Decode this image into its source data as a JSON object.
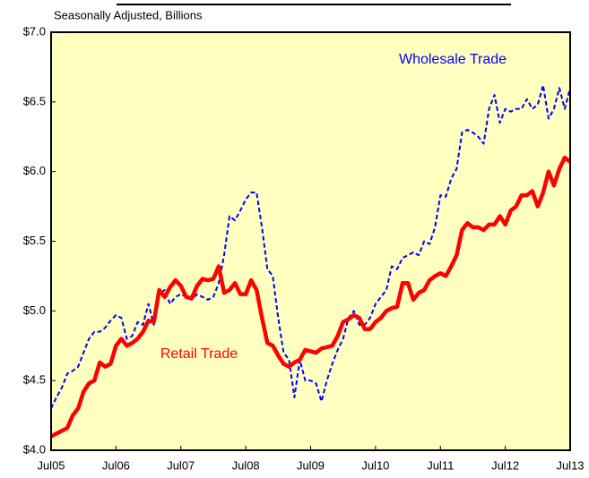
{
  "chart_data": {
    "type": "line",
    "subtitle": "Seasonally Adjusted, Billions",
    "categories": [
      "Jul05",
      null,
      null,
      null,
      null,
      null,
      null,
      null,
      null,
      null,
      null,
      null,
      "Jul06",
      null,
      null,
      null,
      null,
      null,
      null,
      null,
      null,
      null,
      null,
      null,
      "Jul07",
      null,
      null,
      null,
      null,
      null,
      null,
      null,
      null,
      null,
      null,
      null,
      "Jul08",
      null,
      null,
      null,
      null,
      null,
      null,
      null,
      null,
      null,
      null,
      null,
      "Jul09",
      null,
      null,
      null,
      null,
      null,
      null,
      null,
      null,
      null,
      null,
      null,
      "Jul10",
      null,
      null,
      null,
      null,
      null,
      null,
      null,
      null,
      null,
      null,
      null,
      "Jul11",
      null,
      null,
      null,
      null,
      null,
      null,
      null,
      null,
      null,
      null,
      null,
      "Jul12",
      null,
      null,
      null,
      null,
      null,
      null,
      null,
      null,
      null,
      null,
      null,
      "Jul13"
    ],
    "series": [
      {
        "name": "Wholesale Trade",
        "color": "#0000ff",
        "line_style": "dashed",
        "line_width": 2,
        "values": [
          4.3,
          4.38,
          4.45,
          4.55,
          4.57,
          4.6,
          4.7,
          4.8,
          4.85,
          4.85,
          4.88,
          4.93,
          4.97,
          4.95,
          4.8,
          4.82,
          4.92,
          4.9,
          5.05,
          4.9,
          5.12,
          5.15,
          5.05,
          5.1,
          5.12,
          5.1,
          5.08,
          5.12,
          5.1,
          5.08,
          5.1,
          5.2,
          5.4,
          5.68,
          5.65,
          5.72,
          5.8,
          5.85,
          5.85,
          5.6,
          5.3,
          5.25,
          4.95,
          4.7,
          4.65,
          4.38,
          4.65,
          4.5,
          4.5,
          4.48,
          4.35,
          4.5,
          4.62,
          4.72,
          4.8,
          4.95,
          5.0,
          4.9,
          4.9,
          4.95,
          5.05,
          5.1,
          5.15,
          5.32,
          5.3,
          5.38,
          5.4,
          5.42,
          5.4,
          5.5,
          5.48,
          5.6,
          5.83,
          5.82,
          5.95,
          6.02,
          6.28,
          6.3,
          6.28,
          6.25,
          6.2,
          6.45,
          6.55,
          6.35,
          6.45,
          6.43,
          6.45,
          6.45,
          6.52,
          6.45,
          6.48,
          6.62,
          6.38,
          6.45,
          6.6,
          6.45,
          6.6
        ]
      },
      {
        "name": "Retail Trade",
        "color": "#ff0000",
        "line_style": "solid",
        "line_width": 4.5,
        "values": [
          4.1,
          4.12,
          4.14,
          4.16,
          4.25,
          4.3,
          4.42,
          4.48,
          4.5,
          4.63,
          4.6,
          4.62,
          4.75,
          4.8,
          4.75,
          4.77,
          4.8,
          4.85,
          4.93,
          4.92,
          5.15,
          5.1,
          5.17,
          5.22,
          5.18,
          5.1,
          5.09,
          5.18,
          5.23,
          5.22,
          5.23,
          5.32,
          5.13,
          5.15,
          5.2,
          5.12,
          5.12,
          5.22,
          5.15,
          4.95,
          4.77,
          4.75,
          4.68,
          4.62,
          4.6,
          4.63,
          4.65,
          4.72,
          4.71,
          4.7,
          4.73,
          4.74,
          4.75,
          4.82,
          4.92,
          4.94,
          4.97,
          4.95,
          4.87,
          4.87,
          4.92,
          4.95,
          5.0,
          5.02,
          5.03,
          5.2,
          5.2,
          5.08,
          5.13,
          5.15,
          5.22,
          5.25,
          5.27,
          5.25,
          5.32,
          5.4,
          5.58,
          5.63,
          5.6,
          5.6,
          5.58,
          5.62,
          5.62,
          5.68,
          5.62,
          5.72,
          5.75,
          5.83,
          5.83,
          5.86,
          5.75,
          5.85,
          6.0,
          5.9,
          6.02,
          6.1,
          6.07
        ]
      }
    ],
    "ylim": [
      4.0,
      7.0
    ],
    "yticks": [
      {
        "value": 4.0,
        "label": "$4.0"
      },
      {
        "value": 4.5,
        "label": "$4.5"
      },
      {
        "value": 5.0,
        "label": "$5.0"
      },
      {
        "value": 5.5,
        "label": "$5.5"
      },
      {
        "value": 6.0,
        "label": "$6.0"
      },
      {
        "value": 6.5,
        "label": "$6.5"
      },
      {
        "value": 7.0,
        "label": "$7.0"
      }
    ],
    "background": "#ffffc0",
    "grid": false
  }
}
